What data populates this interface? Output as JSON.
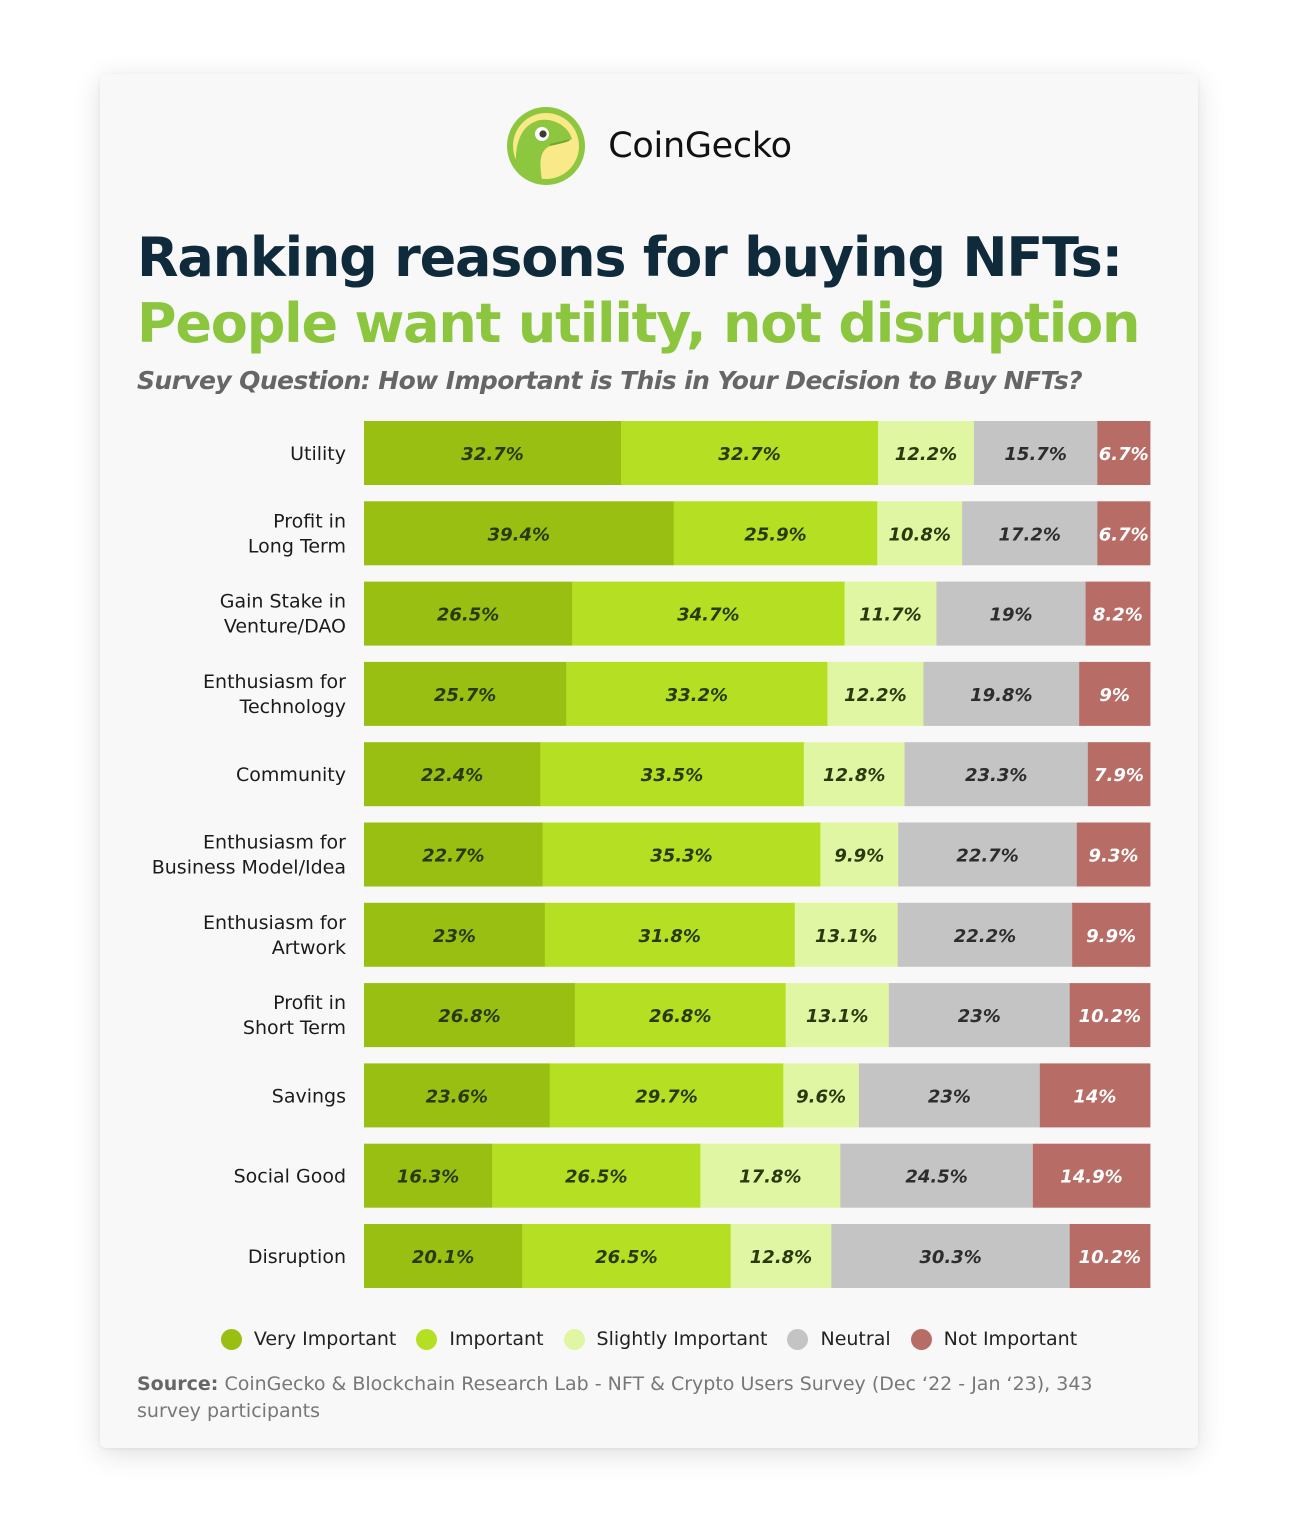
{
  "brand": {
    "name": "CoinGecko",
    "logo_icon": "gecko-logo-icon"
  },
  "colors": {
    "very_important": "#98bf12",
    "important": "#b5df22",
    "slightly_important": "#e1f6a2",
    "neutral": "#c4c4c4",
    "not_important": "#b76c66",
    "title_dark": "#0f2a3a",
    "title_green": "#8cc63f"
  },
  "source": {
    "label": "Source:",
    "text": "CoinGecko & Blockchain Research Lab - NFT & Crypto Users Survey (Dec ‘22 - Jan ‘23), 343 survey participants"
  },
  "chart_data": {
    "type": "bar",
    "orientation": "horizontal",
    "stacked": true,
    "title": "Ranking reasons for buying NFTs:",
    "subtitle_highlight": "People want utility, not disruption",
    "question": "Survey Question: How Important is This in Your Decision to Buy NFTs?",
    "xlim": [
      0,
      100
    ],
    "grid": false,
    "legend_position": "bottom",
    "categories": [
      [
        "Utility"
      ],
      [
        "Profit in",
        "Long Term"
      ],
      [
        "Gain Stake in",
        "Venture/DAO"
      ],
      [
        "Enthusiasm for",
        "Technology"
      ],
      [
        "Community"
      ],
      [
        "Enthusiasm for",
        "Business Model/Idea"
      ],
      [
        "Enthusiasm for",
        "Artwork"
      ],
      [
        "Profit in",
        "Short Term"
      ],
      [
        "Savings"
      ],
      [
        "Social Good"
      ],
      [
        "Disruption"
      ]
    ],
    "series": [
      {
        "name": "Very Important",
        "color": "#98bf12",
        "text_color": "#2a3a10",
        "values": [
          32.7,
          39.4,
          26.5,
          25.7,
          22.4,
          22.7,
          23,
          26.8,
          23.6,
          16.3,
          20.1
        ],
        "labels": [
          "32.7%",
          "39.4%",
          "26.5%",
          "25.7%",
          "22.4%",
          "22.7%",
          "23%",
          "26.8%",
          "23.6%",
          "16.3%",
          "20.1%"
        ]
      },
      {
        "name": "Important",
        "color": "#b5df22",
        "text_color": "#2a3a10",
        "values": [
          32.7,
          25.9,
          34.7,
          33.2,
          33.5,
          35.3,
          31.8,
          26.8,
          29.7,
          26.5,
          26.5
        ],
        "labels": [
          "32.7%",
          "25.9%",
          "34.7%",
          "33.2%",
          "33.5%",
          "35.3%",
          "31.8%",
          "26.8%",
          "29.7%",
          "26.5%",
          "26.5%"
        ]
      },
      {
        "name": "Slightly Important",
        "color": "#e1f6a2",
        "text_color": "#2a3a10",
        "values": [
          12.2,
          10.8,
          11.7,
          12.2,
          12.8,
          9.9,
          13.1,
          13.1,
          9.6,
          17.8,
          12.8
        ],
        "labels": [
          "12.2%",
          "10.8%",
          "11.7%",
          "12.2%",
          "12.8%",
          "9.9%",
          "13.1%",
          "13.1%",
          "9.6%",
          "17.8%",
          "12.8%"
        ]
      },
      {
        "name": "Neutral",
        "color": "#c4c4c4",
        "text_color": "#2d2d2d",
        "values": [
          15.7,
          17.2,
          19,
          19.8,
          23.3,
          22.7,
          22.2,
          23,
          23,
          24.5,
          30.3
        ],
        "labels": [
          "15.7%",
          "17.2%",
          "19%",
          "19.8%",
          "23.3%",
          "22.7%",
          "22.2%",
          "23%",
          "23%",
          "24.5%",
          "30.3%"
        ]
      },
      {
        "name": "Not Important",
        "color": "#b76c66",
        "text_color": "#ffffff",
        "values": [
          6.7,
          6.7,
          8.2,
          9,
          7.9,
          9.3,
          9.9,
          10.2,
          14,
          14.9,
          10.2
        ],
        "labels": [
          "6.7%",
          "6.7%",
          "8.2%",
          "9%",
          "7.9%",
          "9.3%",
          "9.9%",
          "10.2%",
          "14%",
          "14.9%",
          "10.2%"
        ]
      }
    ]
  }
}
